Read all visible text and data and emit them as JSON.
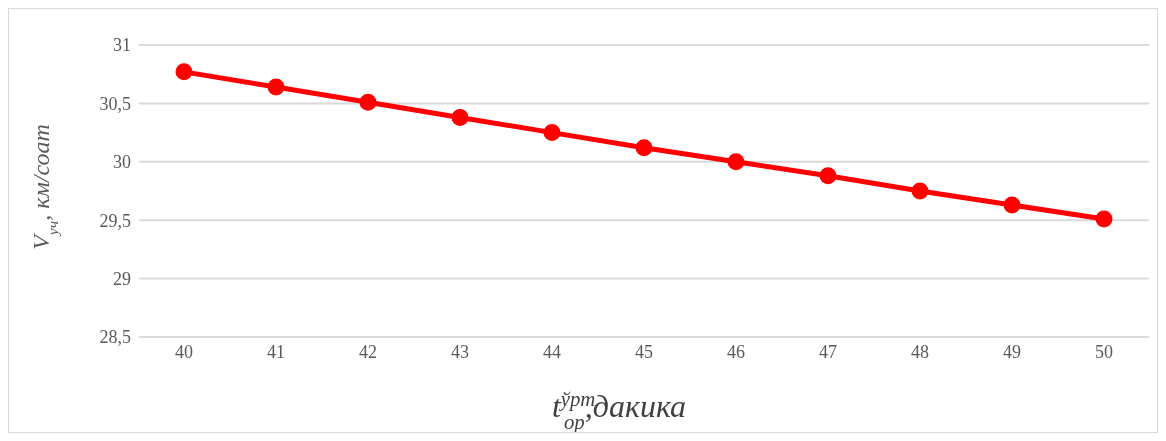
{
  "chart_data": {
    "type": "line",
    "xlabel": "t$^{ўрт}$$_{ор}$,дакика",
    "ylabel": "V$_{уч}$, км/соат",
    "categories": [
      "40",
      "41",
      "42",
      "43",
      "44",
      "45",
      "46",
      "47",
      "48",
      "49",
      "50"
    ],
    "series": [
      {
        "color": "#ff0000",
        "values": [
          30.77,
          30.64,
          30.51,
          30.38,
          30.25,
          30.12,
          30.0,
          29.88,
          29.75,
          29.63,
          29.51
        ]
      }
    ],
    "ylim": [
      28.5,
      31
    ],
    "yticks": [
      {
        "value": 28.5,
        "label": "28,5"
      },
      29,
      {
        "value": 29.5,
        "label": "29,5"
      },
      30,
      {
        "value": 30.5,
        "label": "30,5"
      },
      31
    ],
    "grid": "y",
    "marker": "circle",
    "line_style": "solid",
    "legend": false
  }
}
